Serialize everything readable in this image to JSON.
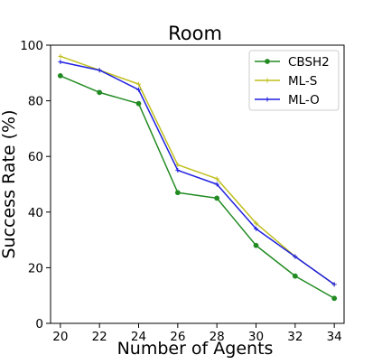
{
  "chart_data": {
    "type": "line",
    "title": "Room",
    "xlabel": "Number of Agents",
    "ylabel": "Success Rate (%)",
    "x": [
      20,
      22,
      24,
      26,
      28,
      30,
      32,
      34
    ],
    "xlim": [
      19.5,
      34.5
    ],
    "ylim": [
      0,
      100
    ],
    "xticks": [
      "20",
      "22",
      "24",
      "26",
      "28",
      "30",
      "32",
      "34"
    ],
    "yticks": [
      "0",
      "20",
      "40",
      "60",
      "80",
      "100"
    ],
    "grid": false,
    "legend_position": "top-right",
    "series": [
      {
        "name": "CBSH2",
        "color": "#228b22",
        "marker": "dot",
        "values": [
          89,
          83,
          79,
          47,
          45,
          28,
          17,
          9
        ]
      },
      {
        "name": "ML-S",
        "color": "#bfbf1f",
        "marker": "plus",
        "values": [
          96,
          91,
          86,
          57,
          52,
          36,
          24,
          14
        ]
      },
      {
        "name": "ML-O",
        "color": "#1f1fe0",
        "marker": "plus",
        "values": [
          94,
          91,
          84,
          55,
          50,
          34,
          24,
          14
        ]
      }
    ]
  }
}
